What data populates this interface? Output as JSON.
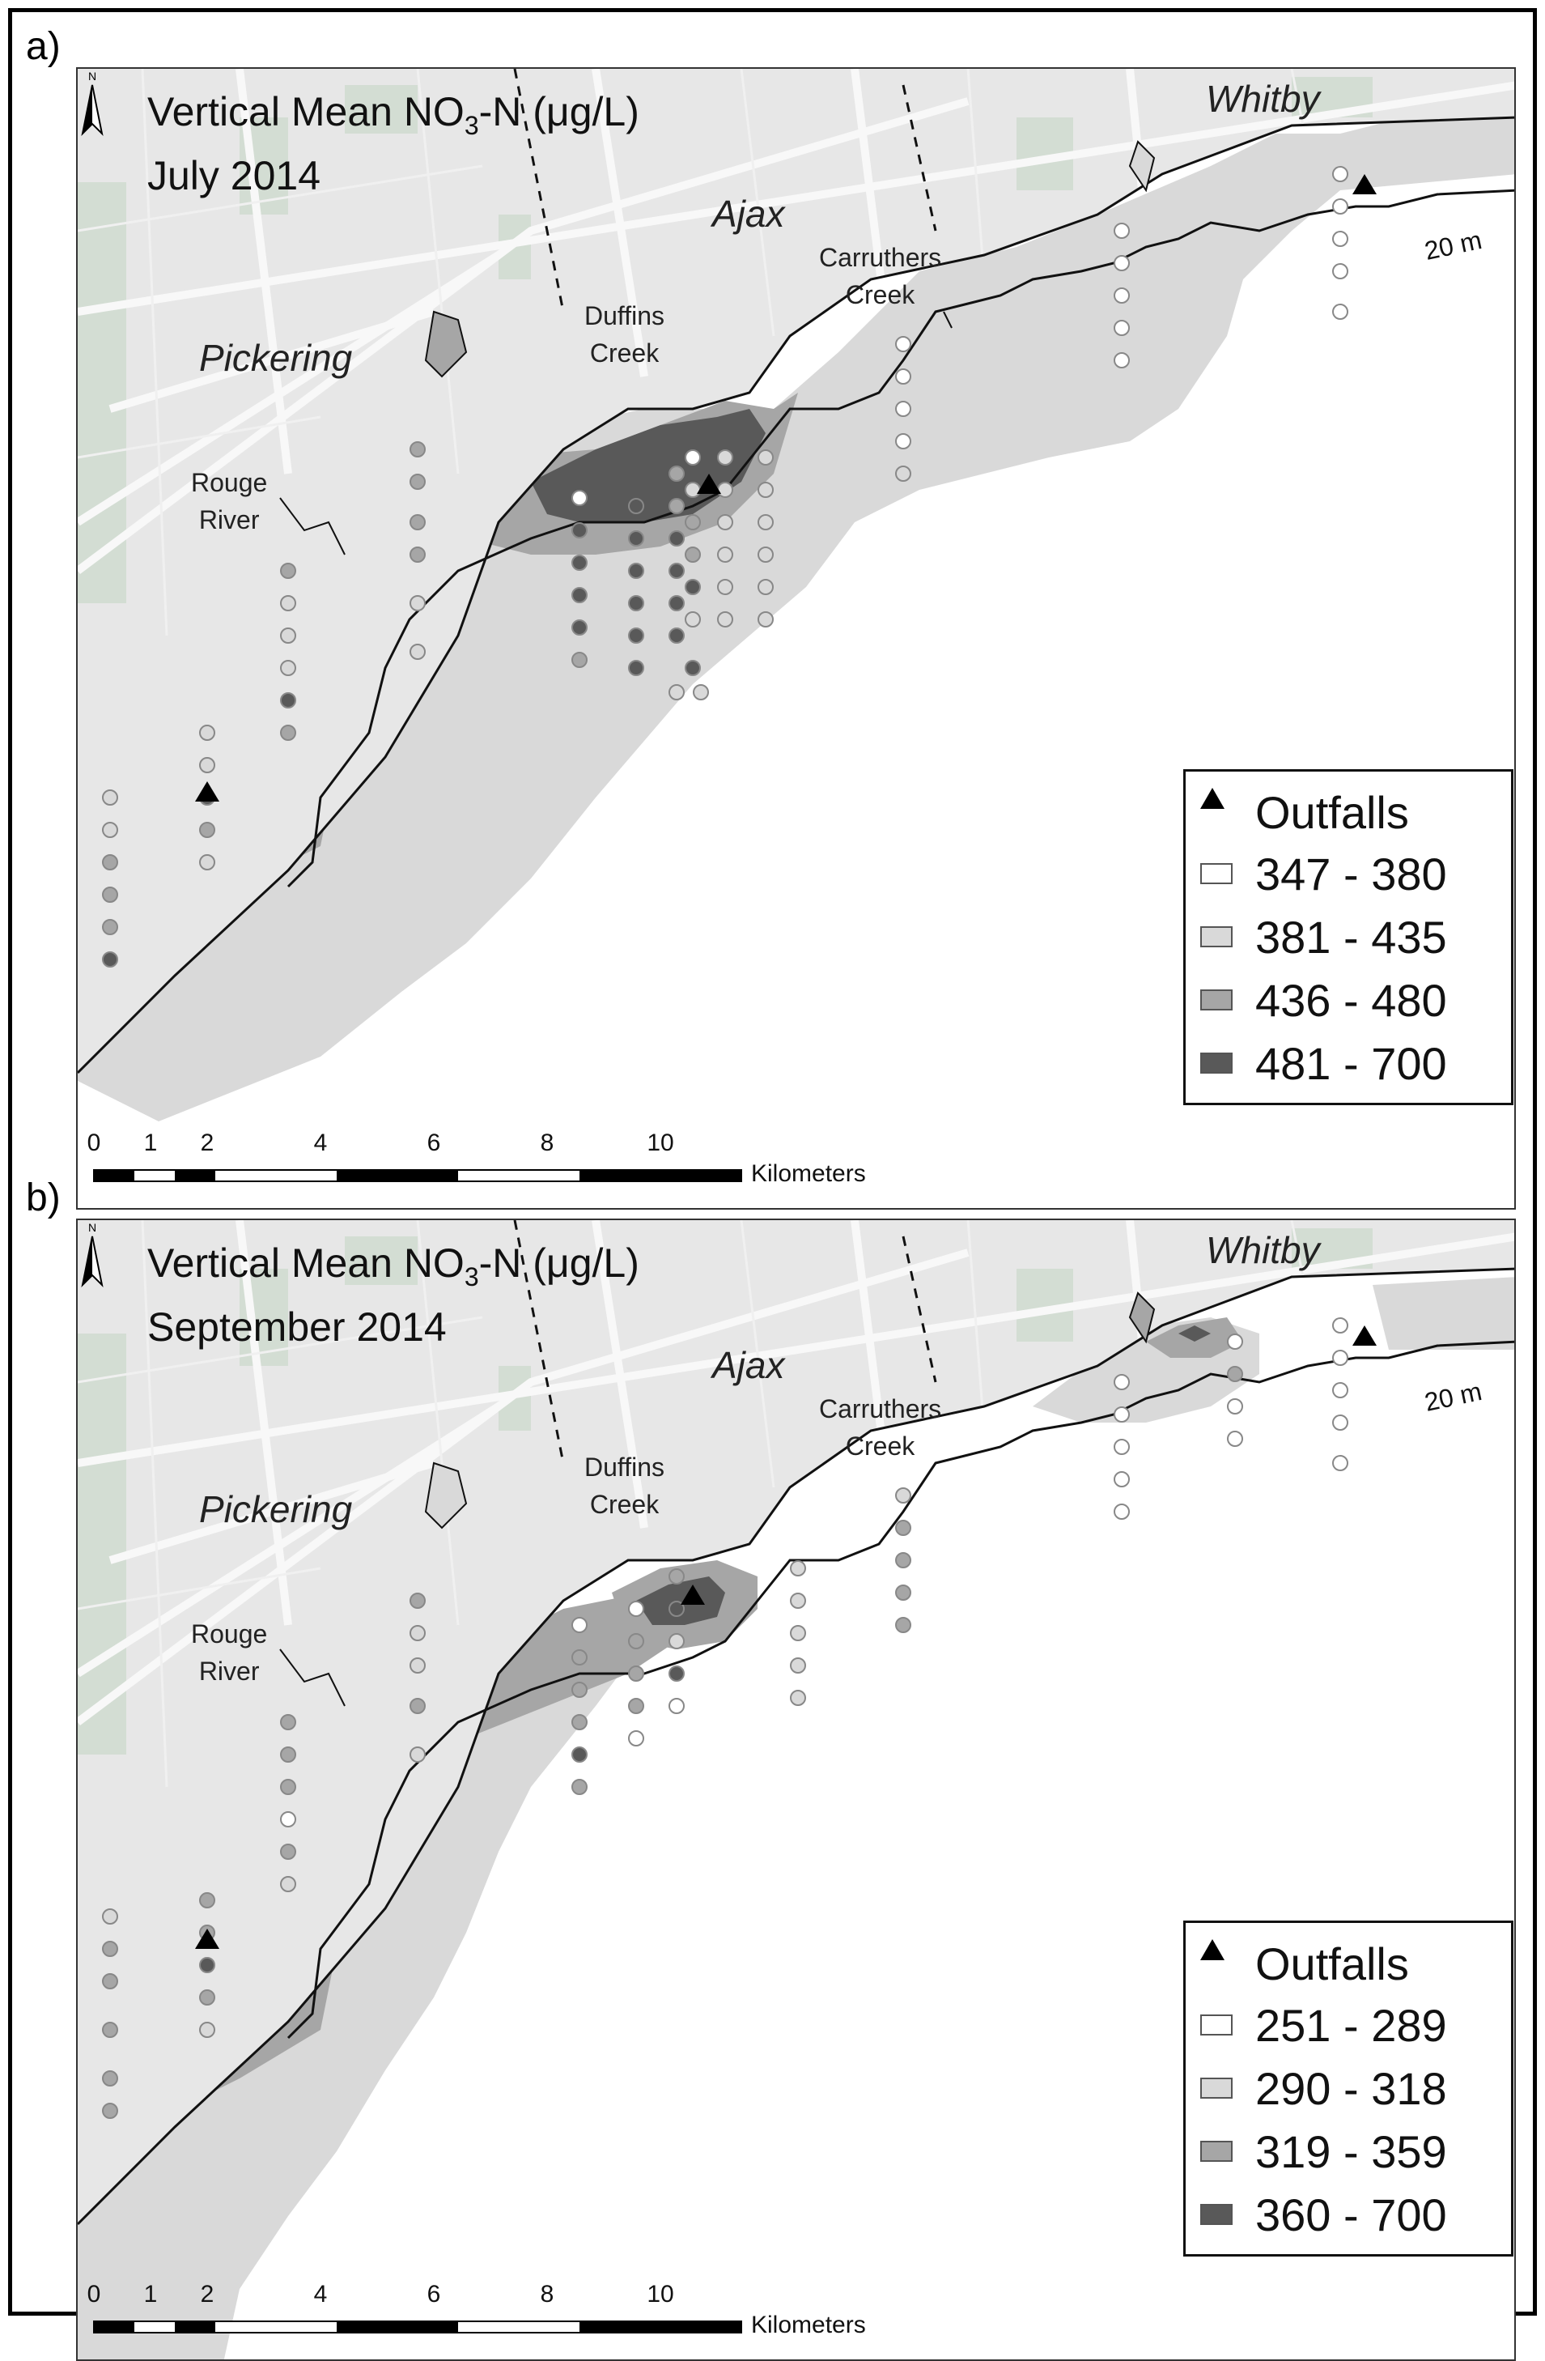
{
  "panels": [
    {
      "letter": "a)",
      "title_line1_pre": "Vertical Mean NO",
      "title_line1_sub": "3",
      "title_line1_post": "-N (μg/L)",
      "title_line2": "July 2014",
      "legend": {
        "outfalls_label": "Outfalls",
        "classes": [
          {
            "label": "347 - 380",
            "color": "#ffffff"
          },
          {
            "label": "381 - 435",
            "color": "#d9d9d9"
          },
          {
            "label": "436 - 480",
            "color": "#a6a6a6"
          },
          {
            "label": "481 - 700",
            "color": "#595959"
          }
        ]
      }
    },
    {
      "letter": "b)",
      "title_line1_pre": "Vertical Mean NO",
      "title_line1_sub": "3",
      "title_line1_post": "-N (μg/L)",
      "title_line2": "September 2014",
      "legend": {
        "outfalls_label": "Outfalls",
        "classes": [
          {
            "label": "251 - 289",
            "color": "#ffffff"
          },
          {
            "label": "290 - 318",
            "color": "#d9d9d9"
          },
          {
            "label": "319 - 359",
            "color": "#a6a6a6"
          },
          {
            "label": "360 - 700",
            "color": "#595959"
          }
        ]
      }
    }
  ],
  "places": {
    "whitby": "Whitby",
    "ajax": "Ajax",
    "pickering": "Pickering",
    "carruthers_line1": "Carruthers",
    "carruthers_line2": "Creek",
    "duffins_line1": "Duffins",
    "duffins_line2": "Creek",
    "rouge_line1": "Rouge",
    "rouge_line2": "River",
    "contour": "20 m"
  },
  "north_label": "N",
  "scale": {
    "ticks": [
      "0",
      "1",
      "2",
      "4",
      "6",
      "8",
      "10"
    ],
    "unit": "Kilometers"
  },
  "colors": {
    "land": "#e7e7e7",
    "road": "#f7f7f7",
    "park": "#d2ddd2",
    "lake_white": "#ffffff",
    "class_light": "#d9d9d9",
    "class_mid": "#a6a6a6",
    "class_dark": "#595959",
    "line": "#111111"
  }
}
